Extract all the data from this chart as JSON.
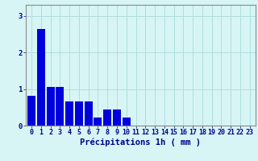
{
  "values": [
    0.82,
    2.65,
    1.05,
    1.05,
    0.65,
    0.65,
    0.65,
    0.22,
    0.45,
    0.45,
    0.22,
    0,
    0,
    0,
    0,
    0,
    0,
    0,
    0,
    0,
    0,
    0,
    0,
    0
  ],
  "bar_color": "#0000dd",
  "background_color": "#d8f5f5",
  "grid_color": "#b0dede",
  "axis_color": "#888888",
  "text_color": "#00008b",
  "xlabel": "Précipitations 1h ( mm )",
  "ylim": [
    0,
    3.3
  ],
  "yticks": [
    0,
    1,
    2,
    3
  ],
  "xlabel_fontsize": 7.5,
  "tick_fontsize": 6.0,
  "n_bars": 24
}
